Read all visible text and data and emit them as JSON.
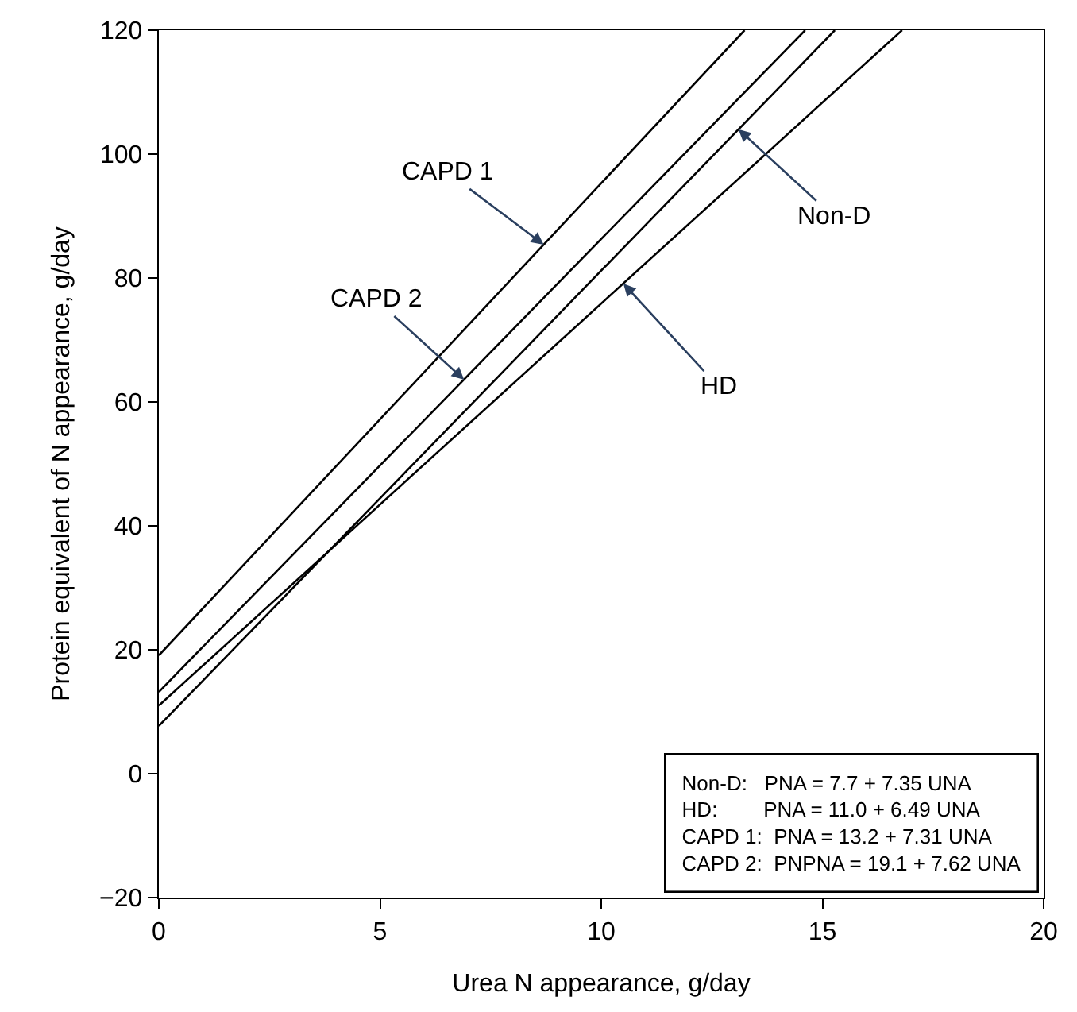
{
  "chart_data": {
    "type": "line",
    "xlabel": "Urea N appearance, g/day",
    "ylabel": "Protein equivalent of N appearance, g/day",
    "series": [
      {
        "color": "#000000",
        "x": [
          0,
          15.28
        ],
        "values": [
          7.7,
          120
        ]
      },
      {
        "color": "#000000",
        "x": [
          0,
          16.8
        ],
        "values": [
          11.0,
          120
        ]
      },
      {
        "color": "#000000",
        "x": [
          0,
          14.61
        ],
        "values": [
          13.2,
          120
        ]
      },
      {
        "color": "#000000",
        "x": [
          0,
          13.24
        ],
        "values": [
          19.1,
          120
        ]
      }
    ],
    "xlim": [
      0,
      20
    ],
    "xticks": [
      0,
      5,
      10,
      15,
      20
    ],
    "ylim": [
      -20,
      120
    ],
    "yticks": [
      {
        "value": -20,
        "label": "−20"
      },
      0,
      20,
      40,
      60,
      80,
      100,
      120
    ],
    "marker": "none",
    "line_style": "solid",
    "annotations": [
      {
        "text": "CAPD 1",
        "x": 8.7,
        "y": 85.4
      },
      {
        "text": "CAPD 2",
        "x": 6.9,
        "y": 63.6
      },
      {
        "text": "Non-D",
        "x": 13.1,
        "y": 104
      },
      {
        "text": "HD",
        "x": 10.5,
        "y": 79.1
      },
      "Non-D:   PNA = 7.7 + 7.35 UNA\nHD:        PNA = 11.0 + 6.49 UNA\nCAPD 1:  PNA = 13.2 + 7.31 UNA\nCAPD 2:  PNPNA = 19.1 + 7.62 UNA"
    ]
  }
}
